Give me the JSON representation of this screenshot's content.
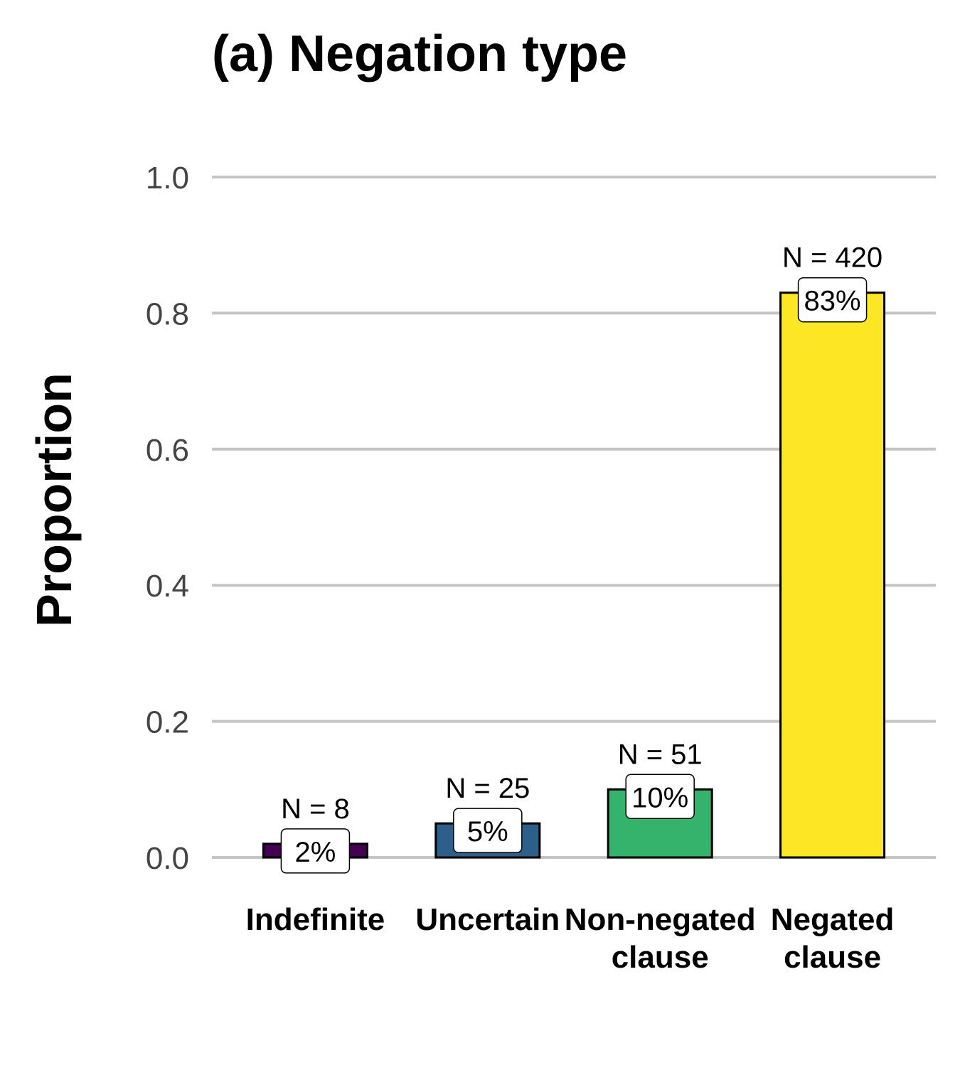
{
  "chart_data": {
    "type": "bar",
    "title": "(a) Negation type",
    "xlabel": "",
    "ylabel": "Proportion",
    "ylim": [
      0,
      1
    ],
    "yticks": [
      "0.0",
      "0.2",
      "0.4",
      "0.6",
      "0.8",
      "1.0"
    ],
    "grid": "horizontal major gridlines",
    "legend": "none",
    "categories": [
      [
        "Indefinite"
      ],
      [
        "Uncertain"
      ],
      [
        "Non-negated",
        "clause"
      ],
      [
        "Negated",
        "clause"
      ]
    ],
    "values": [
      0.02,
      0.05,
      0.1,
      0.83
    ],
    "counts": [
      "N = 8",
      "N = 25",
      "N = 51",
      "N = 420"
    ],
    "percent_labels": [
      "2%",
      "5%",
      "10%",
      "83%"
    ],
    "colors": [
      "#440154",
      "#2c5f8a",
      "#35b26b",
      "#fde725"
    ]
  }
}
